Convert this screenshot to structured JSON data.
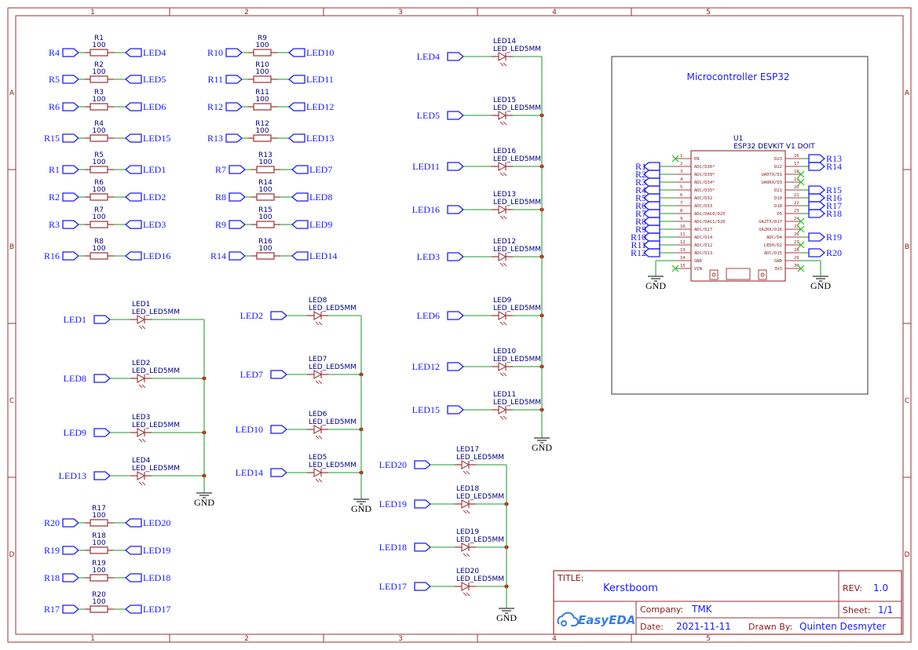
{
  "colors": {
    "frame": "#993333",
    "wire": "#4caf50",
    "component": "#a04040",
    "net_label": "#1a1aff",
    "no_connect": "#33cc33",
    "junction": "#cc0000"
  },
  "frame": {
    "columns": [
      "1",
      "2",
      "3",
      "4",
      "5"
    ],
    "rows": [
      "A",
      "B",
      "C",
      "D"
    ]
  },
  "resistors": [
    {
      "ref": "R1",
      "value": "100",
      "left_net": "R4",
      "right_net": "LED4"
    },
    {
      "ref": "R2",
      "value": "100",
      "left_net": "R5",
      "right_net": "LED5"
    },
    {
      "ref": "R3",
      "value": "100",
      "left_net": "R6",
      "right_net": "LED6"
    },
    {
      "ref": "R4",
      "value": "100",
      "left_net": "R15",
      "right_net": "LED15"
    },
    {
      "ref": "R5",
      "value": "100",
      "left_net": "R1",
      "right_net": "LED1"
    },
    {
      "ref": "R6",
      "value": "100",
      "left_net": "R2",
      "right_net": "LED2"
    },
    {
      "ref": "R7",
      "value": "100",
      "left_net": "R3",
      "right_net": "LED3"
    },
    {
      "ref": "R8",
      "value": "100",
      "left_net": "R16",
      "right_net": "LED16"
    },
    {
      "ref": "R9",
      "value": "100",
      "left_net": "R10",
      "right_net": "LED10"
    },
    {
      "ref": "R10",
      "value": "100",
      "left_net": "R11",
      "right_net": "LED11"
    },
    {
      "ref": "R11",
      "value": "100",
      "left_net": "R12",
      "right_net": "LED12"
    },
    {
      "ref": "R12",
      "value": "100",
      "left_net": "R13",
      "right_net": "LED13"
    },
    {
      "ref": "R13",
      "value": "100",
      "left_net": "R7",
      "right_net": "LED7"
    },
    {
      "ref": "R14",
      "value": "100",
      "left_net": "R8",
      "right_net": "LED8"
    },
    {
      "ref": "R15",
      "value": "100",
      "left_net": "R9",
      "right_net": "LED9"
    },
    {
      "ref": "R16",
      "value": "100",
      "left_net": "R14",
      "right_net": "LED14"
    },
    {
      "ref": "R17",
      "value": "100",
      "left_net": "R20",
      "right_net": "LED20"
    },
    {
      "ref": "R18",
      "value": "100",
      "left_net": "R19",
      "right_net": "LED19"
    },
    {
      "ref": "R19",
      "value": "100",
      "left_net": "R18",
      "right_net": "LED18"
    },
    {
      "ref": "R20",
      "value": "100",
      "left_net": "R17",
      "right_net": "LED17"
    }
  ],
  "led_groups": [
    {
      "ground": "GND",
      "leds": [
        {
          "ref": "LED1",
          "part": "LED_LED5MM",
          "net": "LED1"
        },
        {
          "ref": "LED2",
          "part": "LED_LED5MM",
          "net": "LED8"
        },
        {
          "ref": "LED3",
          "part": "LED_LED5MM",
          "net": "LED9"
        },
        {
          "ref": "LED4",
          "part": "LED_LED5MM",
          "net": "LED13"
        }
      ]
    },
    {
      "ground": "GND",
      "leds": [
        {
          "ref": "LED8",
          "part": "LED_LED5MM",
          "net": "LED2"
        },
        {
          "ref": "LED7",
          "part": "LED_LED5MM",
          "net": "LED7"
        },
        {
          "ref": "LED6",
          "part": "LED_LED5MM",
          "net": "LED10"
        },
        {
          "ref": "LED5",
          "part": "LED_LED5MM",
          "net": "LED14"
        }
      ]
    },
    {
      "ground": "GND",
      "leds": [
        {
          "ref": "LED14",
          "part": "LED_LED5MM",
          "net": "LED4"
        },
        {
          "ref": "LED15",
          "part": "LED_LED5MM",
          "net": "LED5"
        },
        {
          "ref": "LED16",
          "part": "LED_LED5MM",
          "net": "LED11"
        },
        {
          "ref": "LED13",
          "part": "LED_LED5MM",
          "net": "LED16"
        },
        {
          "ref": "LED12",
          "part": "LED_LED5MM",
          "net": "LED3"
        },
        {
          "ref": "LED9",
          "part": "LED_LED5MM",
          "net": "LED6"
        },
        {
          "ref": "LED10",
          "part": "LED_LED5MM",
          "net": "LED12"
        },
        {
          "ref": "LED11",
          "part": "LED_LED5MM",
          "net": "LED15"
        }
      ]
    },
    {
      "ground": "GND",
      "leds": [
        {
          "ref": "LED17",
          "part": "LED_LED5MM",
          "net": "LED20"
        },
        {
          "ref": "LED18",
          "part": "LED_LED5MM",
          "net": "LED19"
        },
        {
          "ref": "LED19",
          "part": "LED_LED5MM",
          "net": "LED18"
        },
        {
          "ref": "LED20",
          "part": "LED_LED5MM",
          "net": "LED17"
        }
      ]
    }
  ],
  "mcu": {
    "box_title": "Microcontroller ESP32",
    "ref": "U1",
    "part": "ESP32 DEVKIT V1 DOIT",
    "left_pins": [
      {
        "num": "1",
        "name": "EN",
        "net": "",
        "nc": true
      },
      {
        "num": "2",
        "name": "ADC/D36*",
        "net": "R1"
      },
      {
        "num": "3",
        "name": "ADC/D39*",
        "net": "R2"
      },
      {
        "num": "4",
        "name": "ADC/D34*",
        "net": "R3"
      },
      {
        "num": "5",
        "name": "ADC/D35*",
        "net": "R4"
      },
      {
        "num": "6",
        "name": "ADC/D32",
        "net": "R5"
      },
      {
        "num": "7",
        "name": "ADC/D33",
        "net": "R6"
      },
      {
        "num": "8",
        "name": "ADC/DAC0/D25",
        "net": "R7"
      },
      {
        "num": "9",
        "name": "ADC/DAC1/D26",
        "net": "R8"
      },
      {
        "num": "10",
        "name": "ADC/D27",
        "net": "R9"
      },
      {
        "num": "11",
        "name": "ADC/D14",
        "net": "R10"
      },
      {
        "num": "12",
        "name": "ADC/D12",
        "net": "R11"
      },
      {
        "num": "13",
        "name": "ADC/D13",
        "net": "R12"
      },
      {
        "num": "14",
        "name": "GND",
        "net": "",
        "gnd": true
      },
      {
        "num": "15",
        "name": "VIN",
        "net": "",
        "nc": true
      }
    ],
    "right_pins": [
      {
        "num": "16",
        "name": "D23",
        "net": "R13"
      },
      {
        "num": "17",
        "name": "D22",
        "net": "R14"
      },
      {
        "num": "18",
        "name": "UA0TX/D1",
        "net": "",
        "nc": true
      },
      {
        "num": "19",
        "name": "UA0RX/D3",
        "net": "",
        "nc": true
      },
      {
        "num": "20",
        "name": "D21",
        "net": "R15"
      },
      {
        "num": "21",
        "name": "D19",
        "net": "R16"
      },
      {
        "num": "22",
        "name": "D18",
        "net": "R17"
      },
      {
        "num": "23",
        "name": "D5",
        "net": "R18"
      },
      {
        "num": "24",
        "name": "UA2TX/D17",
        "net": "",
        "nc": true
      },
      {
        "num": "25",
        "name": "UA2RX/D16",
        "net": "",
        "nc": true
      },
      {
        "num": "26",
        "name": "ADC/D4",
        "net": "R19"
      },
      {
        "num": "27",
        "name": "LED0/D2",
        "net": "",
        "nc": true
      },
      {
        "num": "28",
        "name": "ADC/D15",
        "net": "R20"
      },
      {
        "num": "29",
        "name": "GND",
        "net": "",
        "gnd": true
      },
      {
        "num": "30",
        "name": "3V3",
        "net": "",
        "nc": true
      }
    ],
    "ground": "GND"
  },
  "title_block": {
    "title_label": "TITLE:",
    "title": "Kerstboom",
    "rev_label": "REV:",
    "rev": "1.0",
    "company_label": "Company:",
    "company": "TMK",
    "sheet_label": "Sheet:",
    "sheet": "1/1",
    "date_label": "Date:",
    "date": "2021-11-11",
    "drawn_label": "Drawn By:",
    "drawn_by": "Quinten Desmyter",
    "logo": "EasyEDA"
  }
}
